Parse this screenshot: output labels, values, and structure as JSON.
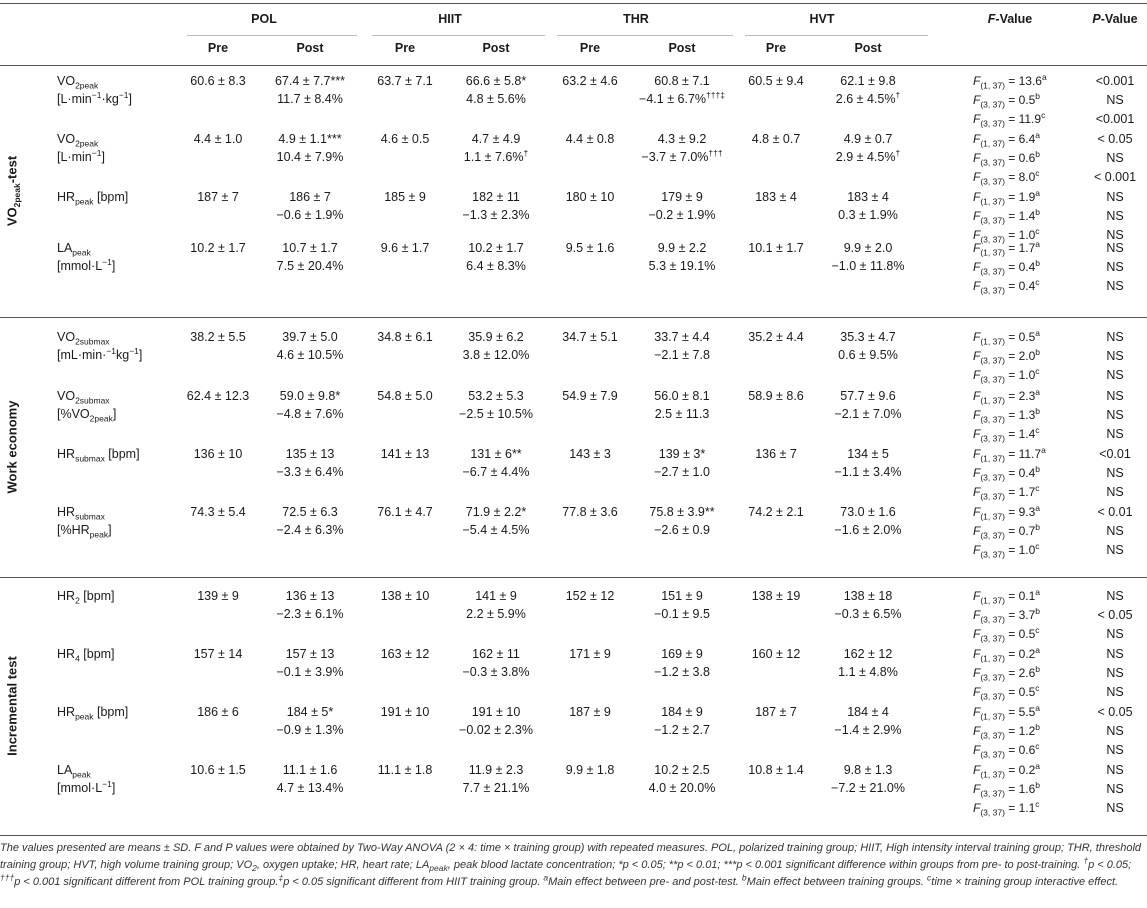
{
  "groups": [
    {
      "name": "POL",
      "pre": "Pre",
      "post": "Post"
    },
    {
      "name": "HIIT",
      "pre": "Pre",
      "post": "Post"
    },
    {
      "name": "THR",
      "pre": "Pre",
      "post": "Post"
    },
    {
      "name": "HVT",
      "pre": "Pre",
      "post": "Post"
    }
  ],
  "fvalue_header": "F-Value",
  "pvalue_header": "P-Value",
  "sections": [
    {
      "label": "VO2peak-test",
      "rows": [
        {
          "label_html": "VO<sub>2peak</sub><br>[L·min<sup>−1</sup>·kg<sup>−1</sup>]",
          "pre": [
            "60.6 ± 8.3",
            "63.7 ± 7.1",
            "63.2 ± 4.6",
            "60.5 ± 9.4"
          ],
          "post": [
            "67.4 ± 7.7***",
            "66.6 ± 5.8*",
            "60.8 ± 7.1",
            "62.1 ± 9.8"
          ],
          "change": [
            "11.7 ± 8.4%",
            "4.8 ± 5.6%",
            "−4.1 ± 6.7%†††‡",
            "2.6 ± 4.5%†"
          ],
          "f": [
            [
              "(1, 37)",
              "13.6",
              "a"
            ],
            [
              "(3, 37)",
              "0.5",
              "b"
            ],
            [
              "(3, 37)",
              "11.9",
              "c"
            ]
          ],
          "p": [
            "<0.001",
            "NS",
            "<0.001"
          ]
        },
        {
          "label_html": "VO<sub>2peak</sub><br>[L·min<sup>−1</sup>]",
          "pre": [
            "4.4 ± 1.0",
            "4.6 ± 0.5",
            "4.4 ± 0.8",
            "4.8 ± 0.7"
          ],
          "post": [
            "4.9 ± 1.1***",
            "4.7 ± 4.9",
            "4.3 ± 9.2",
            "4.9 ± 0.7"
          ],
          "change": [
            "10.4 ± 7.9%",
            "1.1 ± 7.6%†",
            "−3.7 ± 7.0%†††",
            "2.9 ± 4.5%†"
          ],
          "f": [
            [
              "(1, 37)",
              "6.4",
              "a"
            ],
            [
              "(3, 37)",
              "0.6",
              "b"
            ],
            [
              "(3, 37)",
              "8.0",
              "c"
            ]
          ],
          "p": [
            "< 0.05",
            "NS",
            "< 0.001"
          ]
        },
        {
          "label_html": "HR<sub>peak</sub> [bpm]",
          "pre": [
            "187 ± 7",
            "185 ± 9",
            "180 ± 10",
            "183 ± 4"
          ],
          "post": [
            "186 ± 7",
            "182 ± 11",
            "179 ± 9",
            "183 ± 4"
          ],
          "change": [
            "−0.6 ± 1.9%",
            "−1.3 ± 2.3%",
            "−0.2 ± 1.9%",
            "0.3 ± 1.9%"
          ],
          "f": [
            [
              "(1, 37)",
              "1.9",
              "a"
            ],
            [
              "(3, 37)",
              "1.4",
              "b"
            ],
            [
              "(3, 37)",
              "1.0",
              "c"
            ]
          ],
          "p": [
            "NS",
            "NS",
            "NS"
          ]
        },
        {
          "label_html": "LA<sub>peak</sub><br>[mmol·L<sup>−1</sup>]",
          "pre": [
            "10.2 ± 1.7",
            "9.6 ± 1.7",
            "9.5 ± 1.6",
            "10.1 ± 1.7"
          ],
          "post": [
            "10.7 ± 1.7",
            "10.2 ± 1.7",
            "9.9 ± 2.2",
            "9.9 ± 2.0"
          ],
          "change": [
            "7.5 ± 20.4%",
            "6.4 ± 8.3%",
            "5.3 ± 19.1%",
            "−1.0 ± 11.8%"
          ],
          "f": [
            [
              "(1, 37)",
              "1.7",
              "a"
            ],
            [
              "(3, 37)",
              "0.4",
              "b"
            ],
            [
              "(3, 37)",
              "0.4",
              "c"
            ]
          ],
          "p": [
            "NS",
            "NS",
            "NS"
          ]
        }
      ]
    },
    {
      "label": "Work economy",
      "rows": [
        {
          "label_html": "VO<sub>2submax</sub><br>[mL·min·<sup>−1</sup>kg<sup>−1</sup>]",
          "pre": [
            "38.2 ± 5.5",
            "34.8 ± 6.1",
            "34.7 ± 5.1",
            "35.2 ± 4.4"
          ],
          "post": [
            "39.7 ± 5.0",
            "35.9 ± 6.2",
            "33.7 ± 4.4",
            "35.3 ± 4.7"
          ],
          "change": [
            "4.6 ± 10.5%",
            "3.8 ± 12.0%",
            "−2.1 ± 7.8",
            "0.6 ± 9.5%"
          ],
          "f": [
            [
              "(1, 37)",
              "0.5",
              "a"
            ],
            [
              "(3, 37)",
              "2.0",
              "b"
            ],
            [
              "(3, 37)",
              "1.0",
              "c"
            ]
          ],
          "p": [
            "NS",
            "NS",
            "NS"
          ]
        },
        {
          "label_html": "VO<sub>2submax</sub><br>[%VO<sub>2peak</sub>]",
          "pre": [
            "62.4 ± 12.3",
            "54.8 ± 5.0",
            "54.9 ± 7.9",
            "58.9 ± 8.6"
          ],
          "post": [
            "59.0 ± 9.8*",
            "53.2 ± 5.3",
            "56.0 ± 8.1",
            "57.7 ± 9.6"
          ],
          "change": [
            "−4.8 ± 7.6%",
            "−2.5 ± 10.5%",
            "2.5 ± 11.3",
            "−2.1 ± 7.0%"
          ],
          "f": [
            [
              "(1, 37)",
              "2.3",
              "a"
            ],
            [
              "(3, 37)",
              "1.3",
              "b"
            ],
            [
              "(3, 37)",
              "1.4",
              "c"
            ]
          ],
          "p": [
            "NS",
            "NS",
            "NS"
          ]
        },
        {
          "label_html": "HR<sub>submax</sub> [bpm]",
          "pre": [
            "136 ± 10",
            "141 ± 13",
            "143 ± 3",
            "136 ± 7"
          ],
          "post": [
            "135 ± 13",
            "131 ± 6**",
            "139 ± 3*",
            "134 ± 5"
          ],
          "change": [
            "−3.3 ± 6.4%",
            "−6.7 ± 4.4%",
            "−2.7 ± 1.0",
            "−1.1 ± 3.4%"
          ],
          "f": [
            [
              "(1, 37)",
              "11.7",
              "a"
            ],
            [
              "(3, 37)",
              "0.4",
              "b"
            ],
            [
              "(3, 37)",
              "1.7",
              "c"
            ]
          ],
          "p": [
            "<0.01",
            "NS",
            "NS"
          ]
        },
        {
          "label_html": "HR<sub>submax</sub><br>[%HR<sub>peak</sub>]",
          "pre": [
            "74.3 ± 5.4",
            "76.1 ± 4.7",
            "77.8 ± 3.6",
            "74.2 ± 2.1"
          ],
          "post": [
            "72.5 ± 6.3",
            "71.9 ± 2.2*",
            "75.8 ± 3.9**",
            "73.0 ± 1.6"
          ],
          "change": [
            "−2.4 ± 6.3%",
            "−5.4 ± 4.5%",
            "−2.6 ± 0.9",
            "−1.6 ± 2.0%"
          ],
          "f": [
            [
              "(1, 37)",
              "9.3",
              "a"
            ],
            [
              "(3, 37)",
              "0.7",
              "b"
            ],
            [
              "(3, 37)",
              "1.0",
              "c"
            ]
          ],
          "p": [
            "< 0.01",
            "NS",
            "NS"
          ]
        }
      ]
    },
    {
      "label": "Incremental test",
      "rows": [
        {
          "label_html": "HR<sub>2</sub> [bpm]",
          "pre": [
            "139 ± 9",
            "138 ± 10",
            "152 ± 12",
            "138 ± 19"
          ],
          "post": [
            "136 ± 13",
            "141 ± 9",
            "151 ± 9",
            "138 ± 18"
          ],
          "change": [
            "−2.3 ± 6.1%",
            "2.2 ± 5.9%",
            "−0.1 ± 9.5",
            "−0.3 ± 6.5%"
          ],
          "f": [
            [
              "(1, 37)",
              "0.1",
              "a"
            ],
            [
              "(3, 37)",
              "3.7",
              "b"
            ],
            [
              "(3, 37)",
              "0.5",
              "c"
            ]
          ],
          "p": [
            "NS",
            "< 0.05",
            "NS"
          ]
        },
        {
          "label_html": "HR<sub>4</sub> [bpm]",
          "pre": [
            "157 ± 14",
            "163 ± 12",
            "171 ± 9",
            "160 ± 12"
          ],
          "post": [
            "157 ± 13",
            "162 ± 11",
            "169 ± 9",
            "162 ± 12"
          ],
          "change": [
            "−0.1 ± 3.9%",
            "−0.3 ± 3.8%",
            "−1.2 ± 3.8",
            "1.1 ± 4.8%"
          ],
          "f": [
            [
              "(1, 37)",
              "0.2",
              "a"
            ],
            [
              "(3, 37)",
              "2.6",
              "b"
            ],
            [
              "(3, 37)",
              "0.5",
              "c"
            ]
          ],
          "p": [
            "NS",
            "NS",
            "NS"
          ]
        },
        {
          "label_html": "HR<sub>peak</sub> [bpm]",
          "pre": [
            "186 ± 6",
            "191 ± 10",
            "187 ± 9",
            "187 ± 7"
          ],
          "post": [
            "184 ± 5*",
            "191 ± 10",
            "184 ± 9",
            "184 ± 4"
          ],
          "change": [
            "−0.9 ± 1.3%",
            "−0.02 ± 2.3%",
            "−1.2 ± 2.7",
            "−1.4 ± 2.9%"
          ],
          "f": [
            [
              "(1, 37)",
              "5.5",
              "a"
            ],
            [
              "(3, 37)",
              "1.2",
              "b"
            ],
            [
              "(3, 37)",
              "0.6",
              "c"
            ]
          ],
          "p": [
            "< 0.05",
            "NS",
            "NS"
          ]
        },
        {
          "label_html": "LA<sub>peak</sub><br>[mmol·L<sup>−1</sup>]",
          "pre": [
            "10.6 ± 1.5",
            "11.1 ± 1.8",
            "9.9 ± 1.8",
            "10.8 ± 1.4"
          ],
          "post": [
            "11.1 ± 1.6",
            "11.9 ± 2.3",
            "10.2 ± 2.5",
            "9.8 ± 1.3"
          ],
          "change": [
            "4.7 ± 13.4%",
            "7.7 ± 21.1%",
            "4.0 ± 20.0%",
            "−7.2 ± 21.0%"
          ],
          "f": [
            [
              "(1, 37)",
              "0.2",
              "a"
            ],
            [
              "(3, 37)",
              "1.6",
              "b"
            ],
            [
              "(3, 37)",
              "1.1",
              "c"
            ]
          ],
          "p": [
            "NS",
            "NS",
            "NS"
          ]
        }
      ]
    }
  ],
  "footnote_html": "The values presented are means ± SD. F and P values were obtained by Two-Way ANOVA (2 × 4: time × training group) with repeated measures. POL, polarized training group; HIIT, High intensity interval training group; THR, threshold training group; HVT, high volume training group; VO<sub>2</sub>, oxygen uptake; HR, heart rate; LA<sub>peak</sub>, peak blood lactate concentration; *p &lt; 0.05; **p &lt; 0.01; ***p &lt; 0.001 significant difference within groups from pre- to post-training. <sup>†</sup>p &lt; 0.05; <sup>†††</sup>p &lt; 0.001 significant different from POL training group.<sup>‡</sup>p &lt; 0.05 significant different from HIIT training group. <sup>a</sup>Main effect between pre- and post-test. <sup>b</sup>Main effect between training groups. <sup>c</sup>time × training group interactive effect."
}
